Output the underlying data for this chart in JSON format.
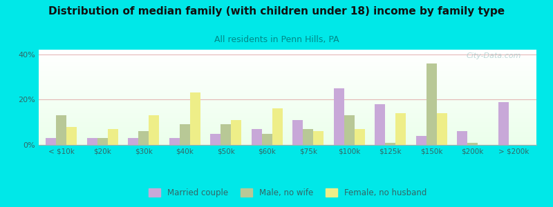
{
  "title": "Distribution of median family (with children under 18) income by family type",
  "subtitle": "All residents in Penn Hills, PA",
  "categories": [
    "< $10k",
    "$20k",
    "$30k",
    "$40k",
    "$50k",
    "$60k",
    "$75k",
    "$100k",
    "$125k",
    "$150k",
    "$200k",
    "> $200k"
  ],
  "married_couple": [
    3,
    3,
    3,
    3,
    5,
    7,
    11,
    25,
    18,
    4,
    6,
    19
  ],
  "male_no_wife": [
    13,
    3,
    6,
    9,
    9,
    5,
    7,
    13,
    1,
    36,
    1,
    0
  ],
  "female_no_husband": [
    8,
    7,
    13,
    23,
    11,
    16,
    6,
    7,
    14,
    14,
    0,
    0
  ],
  "married_color": "#c8a8d8",
  "male_color": "#b8c896",
  "female_color": "#eeee88",
  "bg_color": "#00e8e8",
  "ylim": [
    0,
    42
  ],
  "yticks": [
    0,
    20,
    40
  ],
  "ytick_labels": [
    "0%",
    "20%",
    "40%"
  ],
  "watermark": "City-Data.com",
  "legend_labels": [
    "Married couple",
    "Male, no wife",
    "Female, no husband"
  ],
  "title_fontsize": 11,
  "subtitle_fontsize": 9,
  "subtitle_color": "#008888",
  "tick_color": "#336666",
  "bar_width": 0.25
}
